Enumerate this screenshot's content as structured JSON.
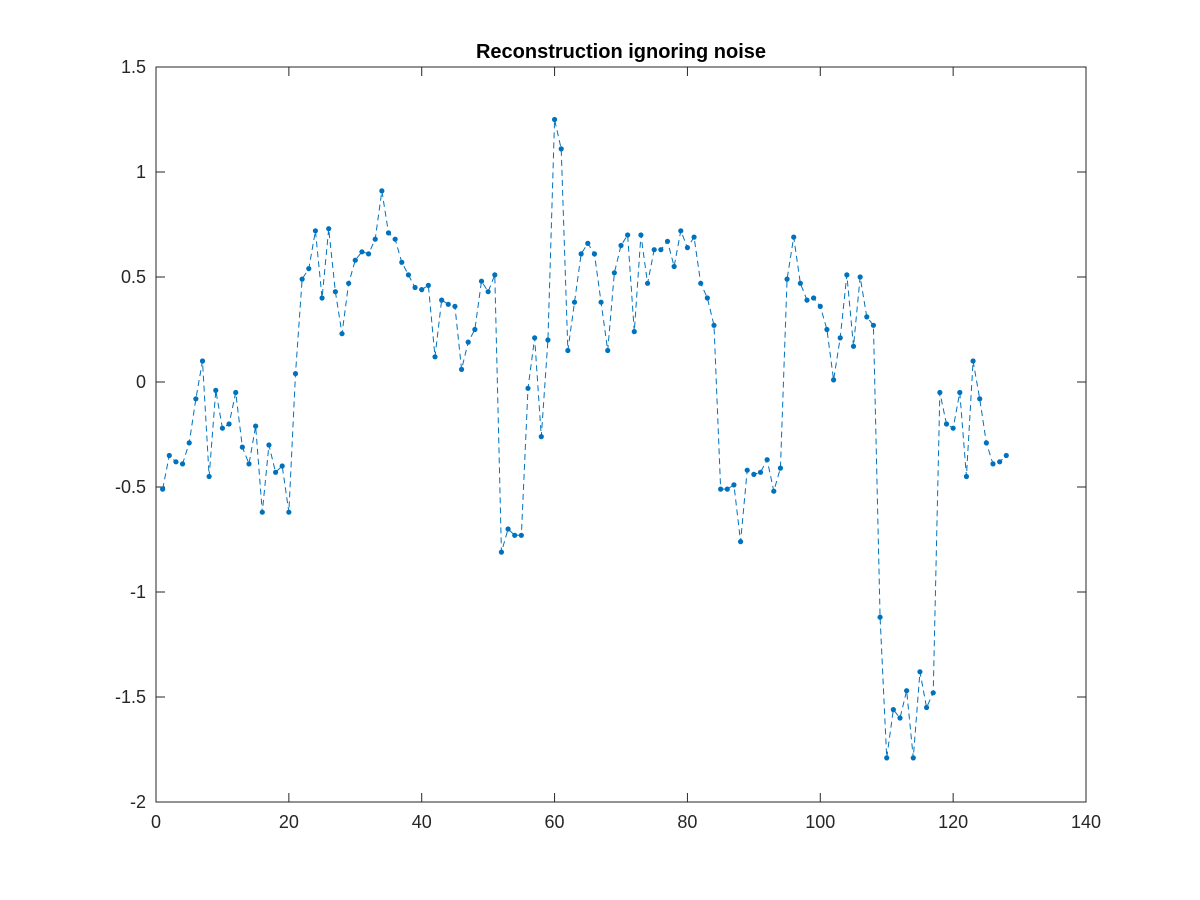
{
  "chart_data": {
    "type": "line",
    "title": "Reconstruction ignoring noise",
    "xlabel": "",
    "ylabel": "",
    "xlim": [
      0,
      140
    ],
    "ylim": [
      -2,
      1.5
    ],
    "x_ticks": [
      "0",
      "20",
      "40",
      "60",
      "80",
      "100",
      "120",
      "140"
    ],
    "y_ticks": [
      "-2",
      "-1.5",
      "-1",
      "-0.5",
      "0",
      "0.5",
      "1",
      "1.5"
    ],
    "grid": false,
    "legend": "none",
    "line_style": "dashed",
    "marker": "dot",
    "series": [
      {
        "color": "#0072BD",
        "x": [
          1,
          2,
          3,
          4,
          5,
          6,
          7,
          8,
          9,
          10,
          11,
          12,
          13,
          14,
          15,
          16,
          17,
          18,
          19,
          20,
          21,
          22,
          23,
          24,
          25,
          26,
          27,
          28,
          29,
          30,
          31,
          32,
          33,
          34,
          35,
          36,
          37,
          38,
          39,
          40,
          41,
          42,
          43,
          44,
          45,
          46,
          47,
          48,
          49,
          50,
          51,
          52,
          53,
          54,
          55,
          56,
          57,
          58,
          59,
          60,
          61,
          62,
          63,
          64,
          65,
          66,
          67,
          68,
          69,
          70,
          71,
          72,
          73,
          74,
          75,
          76,
          77,
          78,
          79,
          80,
          81,
          82,
          83,
          84,
          85,
          86,
          87,
          88,
          89,
          90,
          91,
          92,
          93,
          94,
          95,
          96,
          97,
          98,
          99,
          100,
          101,
          102,
          103,
          104,
          105,
          106,
          107,
          108,
          109,
          110,
          111,
          112,
          113,
          114,
          115,
          116,
          117,
          118,
          119,
          120,
          121,
          122,
          123,
          124,
          125,
          126,
          127,
          128
        ],
        "y": [
          -0.51,
          -0.35,
          -0.38,
          -0.39,
          -0.29,
          -0.08,
          0.1,
          -0.45,
          -0.04,
          -0.22,
          -0.2,
          -0.05,
          -0.31,
          -0.39,
          -0.21,
          -0.62,
          -0.3,
          -0.43,
          -0.4,
          -0.62,
          0.04,
          0.49,
          0.54,
          0.72,
          0.4,
          0.73,
          0.43,
          0.23,
          0.47,
          0.58,
          0.62,
          0.61,
          0.68,
          0.91,
          0.71,
          0.68,
          0.57,
          0.51,
          0.45,
          0.44,
          0.46,
          0.12,
          0.39,
          0.37,
          0.36,
          0.06,
          0.19,
          0.25,
          0.48,
          0.43,
          0.51,
          -0.81,
          -0.7,
          -0.73,
          -0.73,
          -0.03,
          0.21,
          -0.26,
          0.2,
          1.25,
          1.11,
          0.15,
          0.38,
          0.61,
          0.66,
          0.61,
          0.38,
          0.15,
          0.52,
          0.65,
          0.7,
          0.24,
          0.7,
          0.47,
          0.63,
          0.63,
          0.67,
          0.55,
          0.72,
          0.64,
          0.69,
          0.47,
          0.4,
          0.27,
          -0.51,
          -0.51,
          -0.49,
          -0.76,
          -0.42,
          -0.44,
          -0.43,
          -0.37,
          -0.52,
          -0.41,
          0.49,
          0.69,
          0.47,
          0.39,
          0.4,
          0.36,
          0.25,
          0.01,
          0.21,
          0.51,
          0.17,
          0.5,
          0.31,
          0.27,
          -1.12,
          -1.79,
          -1.56,
          -1.6,
          -1.47,
          -1.79,
          -1.38,
          -1.55,
          -1.48,
          -0.05,
          -0.2,
          -0.22,
          -0.05,
          -0.45,
          0.1,
          -0.08,
          -0.29,
          -0.39,
          -0.38,
          -0.35
        ]
      }
    ]
  }
}
